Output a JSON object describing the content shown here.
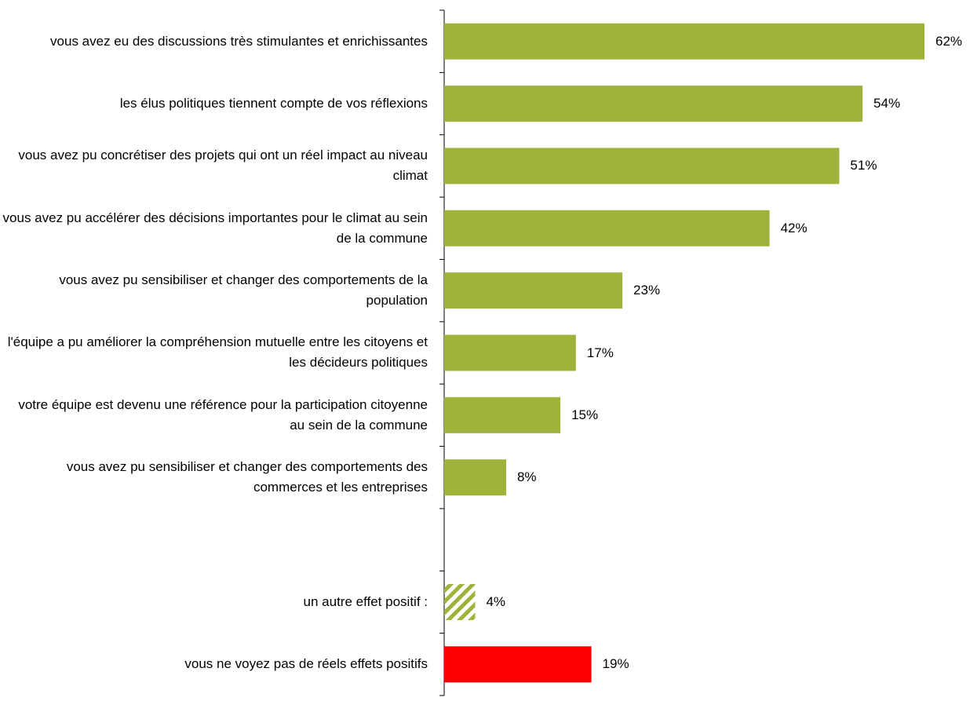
{
  "chart_data": {
    "type": "hbar",
    "categories": [
      "vous avez eu des discussions très stimulantes et enrichissantes",
      "les élus politiques tiennent compte de vos réflexions",
      "vous avez pu concrétiser des projets qui ont un réel impact au niveau climat",
      "vous avez pu accélérer des décisions importantes pour le climat au sein de la commune",
      "vous avez pu sensibiliser et changer des comportements de la population",
      "l'équipe a pu améliorer la compréhension mutuelle entre les citoyens et les décideurs politiques",
      "votre équipe est devenu une référence pour la participation citoyenne au sein de la commune",
      "vous avez pu sensibiliser et changer des comportements des commerces et les entreprises",
      null,
      "un autre effet positif :",
      "vous ne voyez pas de réels effets positifs"
    ],
    "values": [
      62,
      54,
      51,
      42,
      23,
      17,
      15,
      8,
      null,
      4,
      19
    ],
    "value_labels": [
      "62%",
      "54%",
      "51%",
      "42%",
      "23%",
      "17%",
      "15%",
      "8%",
      null,
      "4%",
      "19%"
    ],
    "colors": [
      "#9fb33b",
      "#9fb33b",
      "#9fb33b",
      "#9fb33b",
      "#9fb33b",
      "#9fb33b",
      "#9fb33b",
      "#9fb33b",
      null,
      "#9fb33b",
      "#ff0000"
    ],
    "hatched": [
      false,
      false,
      false,
      false,
      false,
      false,
      false,
      false,
      null,
      true,
      false
    ],
    "xlim": [
      0,
      62
    ]
  }
}
